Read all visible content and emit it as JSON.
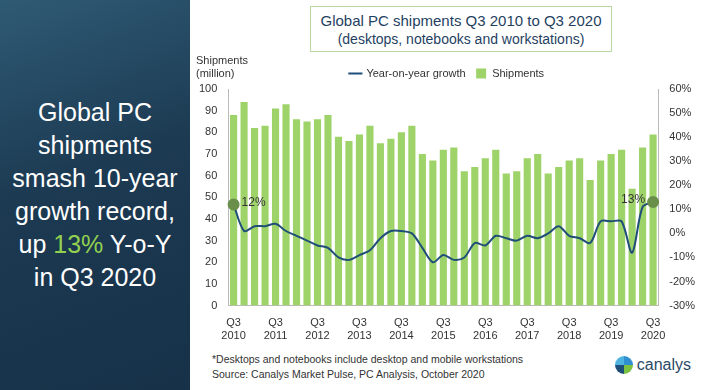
{
  "headline": {
    "before": "Global PC shipments smash 10-year growth record, up ",
    "highlight": "13%",
    "after": " Y-o-Y in Q3 2020"
  },
  "footnote": "*Desktops and notebooks include desktop and mobile workstations",
  "source": "Source: Canalys Market Pulse, PC Analysis, October 2020",
  "logo": "canalys",
  "chart_data": {
    "type": "bar",
    "title": "Global PC shipments Q3 2010 to Q3 2020",
    "subtitle": "(desktops, notebooks and workstations)",
    "y_label": "Shipments (million)",
    "categories": [
      "Q3 2010",
      null,
      null,
      null,
      "Q3 2011",
      null,
      null,
      null,
      "Q3 2012",
      null,
      null,
      null,
      "Q3 2013",
      null,
      null,
      null,
      "Q3 2014",
      null,
      null,
      null,
      "Q3 2015",
      null,
      null,
      null,
      "Q3 2016",
      null,
      null,
      null,
      "Q3 2017",
      null,
      null,
      null,
      "Q3 2018",
      null,
      null,
      null,
      "Q3 2019",
      null,
      null,
      null,
      "Q3 2020"
    ],
    "series": [
      {
        "name": "Shipments",
        "type": "bar",
        "color": "#9ed36a",
        "values": [
          88,
          94,
          82,
          83,
          91,
          93,
          86,
          85,
          86,
          88,
          78,
          76,
          79,
          83,
          75,
          77,
          80,
          83,
          70,
          67,
          72,
          73,
          62,
          64,
          68,
          72,
          61,
          62,
          68,
          70,
          61,
          64,
          67,
          68,
          58,
          67,
          70,
          72,
          54,
          73,
          79
        ]
      },
      {
        "name": "Year-on-year growth",
        "type": "line",
        "color": "#1f4e79",
        "axis": "y2",
        "marker": "circle",
        "values": [
          12,
          1,
          3,
          3,
          4,
          1,
          -1,
          -3,
          -5,
          -6,
          -10,
          -11,
          -9,
          -7,
          -2,
          1,
          1,
          0,
          -6,
          -12,
          -9,
          -11,
          -10,
          -4,
          -5,
          -1,
          -2,
          -3,
          -1,
          -2,
          0,
          3,
          -1,
          -2,
          -4,
          5,
          5,
          5,
          -8,
          11,
          13
        ]
      }
    ],
    "ylim": [
      0,
      100
    ],
    "yticks": [
      0,
      10,
      20,
      30,
      40,
      50,
      60,
      70,
      80,
      90,
      100
    ],
    "y2lim": [
      -30,
      60
    ],
    "y2ticks": [
      {
        "value": -30,
        "label": "-30%"
      },
      {
        "value": -20,
        "label": "-20%"
      },
      {
        "value": -10,
        "label": "-10%"
      },
      {
        "value": 0,
        "label": "0%"
      },
      {
        "value": 10,
        "label": "10%"
      },
      {
        "value": 20,
        "label": "20%"
      },
      {
        "value": 30,
        "label": "30%"
      },
      {
        "value": 40,
        "label": "40%"
      },
      {
        "value": 50,
        "label": "50%"
      },
      {
        "value": 60,
        "label": "60%"
      }
    ],
    "annotations": [
      {
        "text": "12%",
        "category": "Q3 2010",
        "value": 12
      },
      {
        "text": "13%",
        "category": "Q3 2020",
        "value": 13
      }
    ],
    "grid": false,
    "legend": "top"
  }
}
